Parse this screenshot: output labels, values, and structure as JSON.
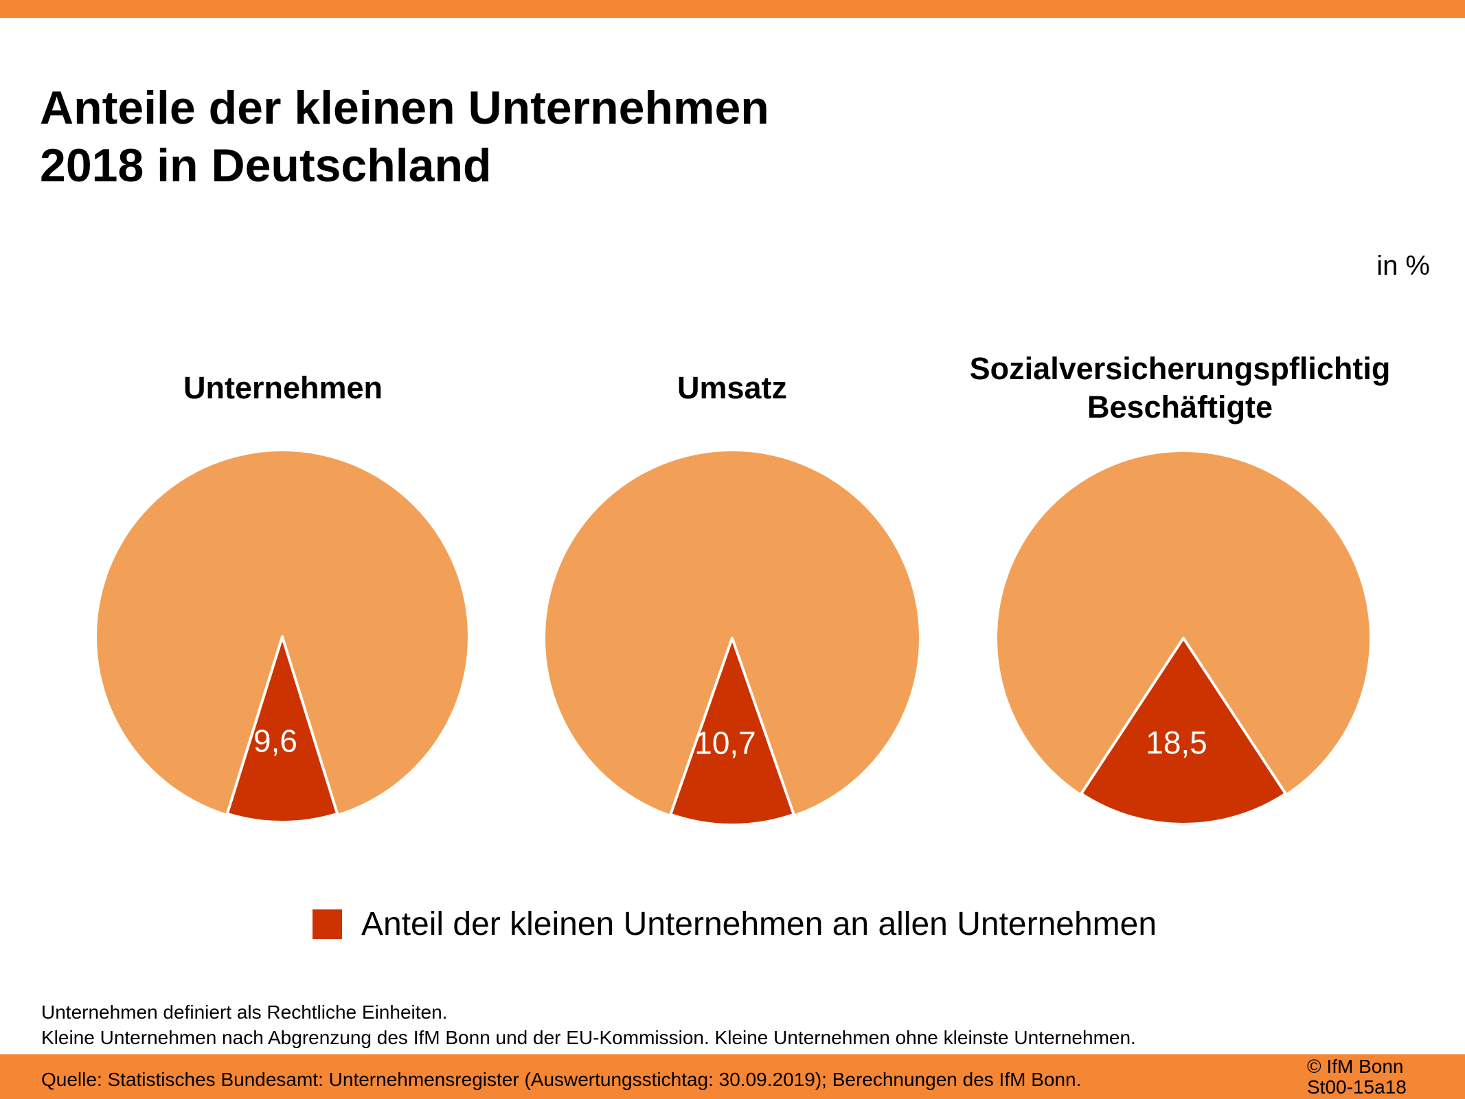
{
  "header": {
    "title_line1": "Anteile der kleinen Unternehmen",
    "title_line2": "2018 in Deutschland",
    "unit": "in %"
  },
  "colors": {
    "accent_bar": "#f58634",
    "pie_rest": "#f2a057",
    "pie_share": "#cc3300"
  },
  "chart_data": [
    {
      "type": "pie",
      "title": "Unternehmen",
      "slices": [
        {
          "label": "Anteil der kleinen Unternehmen an allen Unternehmen",
          "value": 9.6,
          "display": "9,6"
        },
        {
          "label": "",
          "value": 90.4
        }
      ]
    },
    {
      "type": "pie",
      "title": "Umsatz",
      "slices": [
        {
          "label": "Anteil der kleinen Unternehmen an allen Unternehmen",
          "value": 10.7,
          "display": "10,7"
        },
        {
          "label": "",
          "value": 89.3
        }
      ]
    },
    {
      "type": "pie",
      "title": "Sozialversicherungspflichtig Beschäftigte",
      "title_lines": [
        "Sozialversicherungspflichtig",
        "Beschäftigte"
      ],
      "slices": [
        {
          "label": "Anteil der kleinen Unternehmen an allen Unternehmen",
          "value": 18.5,
          "display": "18,5"
        },
        {
          "label": "",
          "value": 81.5
        }
      ]
    }
  ],
  "legend": {
    "label": "Anteil der kleinen Unternehmen an allen Unternehmen",
    "position": "bottom-center"
  },
  "notes": {
    "line1": "Unternehmen definiert als Rechtliche Einheiten.",
    "line2": "Kleine Unternehmen nach Abgrenzung des IfM Bonn und der EU-Kommission. Kleine Unternehmen ohne kleinste Unternehmen."
  },
  "footer": {
    "source": "Quelle: Statistisches Bundesamt: Unternehmensregister (Auswertungsstichtag: 30.09.2019); Berechnungen des IfM Bonn.",
    "copyright": "© IfM Bonn",
    "code": "St00-15a18"
  }
}
